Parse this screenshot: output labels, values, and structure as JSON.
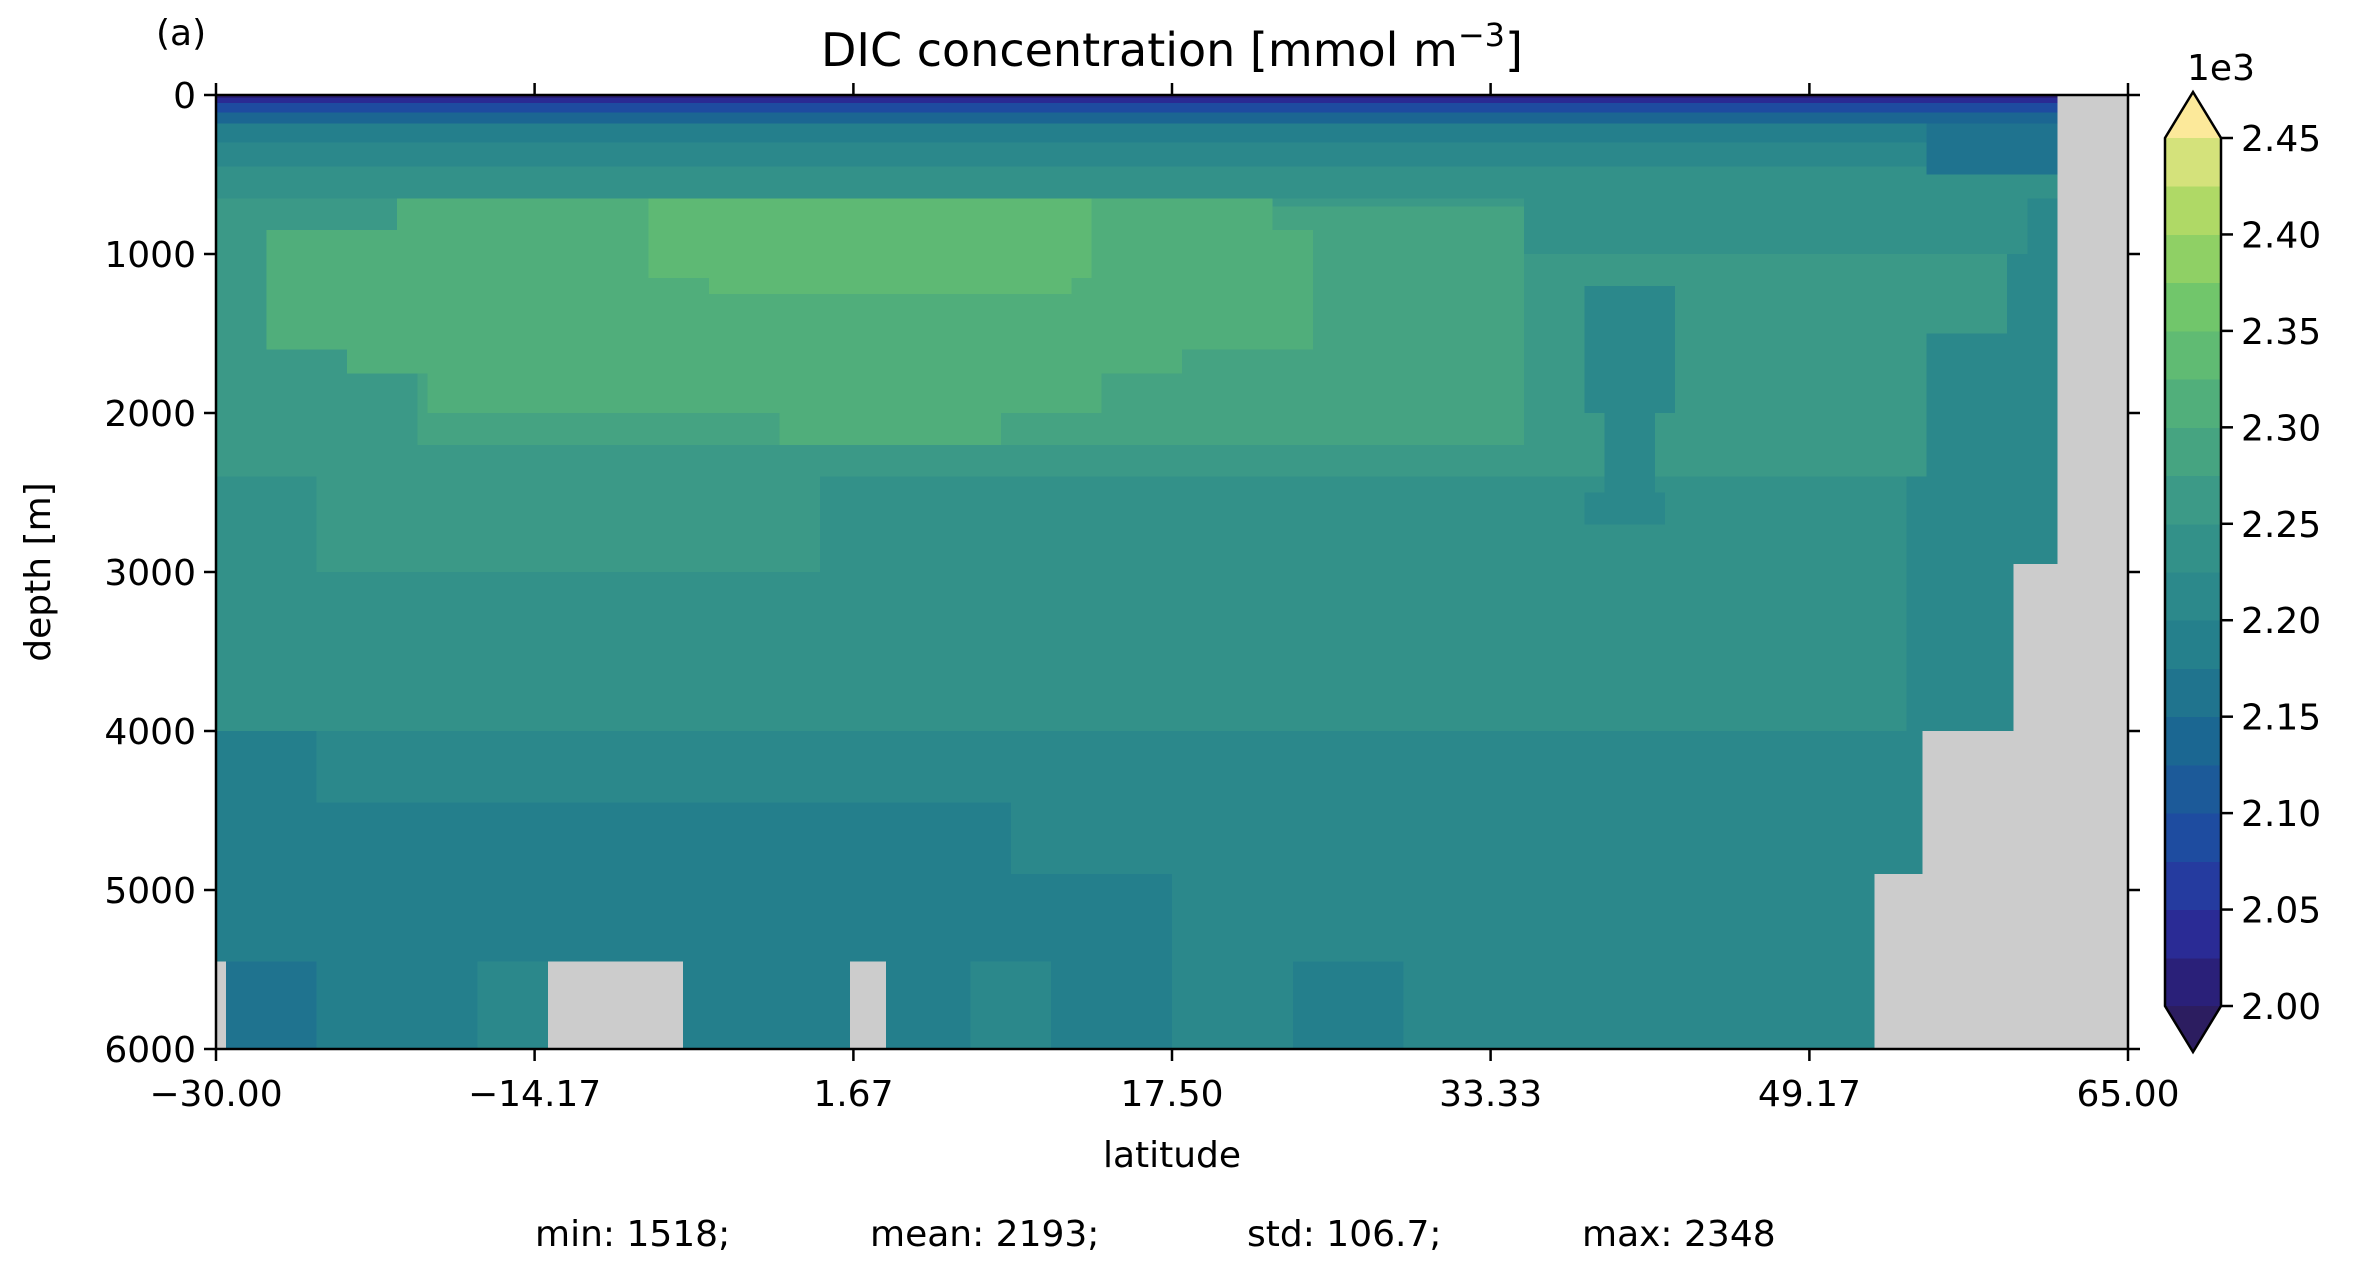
{
  "chart_data": {
    "type": "heatmap",
    "panel_label": "(a)",
    "title": "DIC concentration [mmol m",
    "title_sup": "−3",
    "title_close": "]",
    "xlabel": "latitude",
    "ylabel": "depth [m]",
    "xlim": [
      -30.0,
      65.0
    ],
    "ylim": [
      6000,
      0
    ],
    "y_inverted": true,
    "x_ticks": [
      -30.0,
      -14.17,
      1.67,
      17.5,
      33.33,
      49.17,
      65.0
    ],
    "x_tick_labels": [
      "−30.00",
      "−14.17",
      "1.67",
      "17.50",
      "33.33",
      "49.17",
      "65.00"
    ],
    "y_ticks": [
      0,
      1000,
      2000,
      3000,
      4000,
      5000,
      6000
    ],
    "y_tick_labels": [
      "0",
      "1000",
      "2000",
      "3000",
      "4000",
      "5000",
      "6000"
    ],
    "colorbar": {
      "multiplier_label": "1e3",
      "min": 2.0,
      "max": 2.45,
      "step": 0.025,
      "extend": "both",
      "ticks": [
        2.0,
        2.05,
        2.1,
        2.15,
        2.2,
        2.25,
        2.3,
        2.35,
        2.4,
        2.45
      ],
      "tick_labels": [
        "2.00",
        "2.05",
        "2.10",
        "2.15",
        "2.20",
        "2.25",
        "2.30",
        "2.35",
        "2.40",
        "2.45"
      ],
      "under_color": "#2c1d60",
      "over_color": "#fce99a",
      "colormap_stops": [
        "#2a1a6b",
        "#2a2f9e",
        "#1d4ea0",
        "#1b6692",
        "#237d8c",
        "#2f8d8a",
        "#3f9d86",
        "#52b07a",
        "#6ec56c",
        "#a4d760",
        "#e6e685"
      ]
    },
    "land_color": "#cccccc",
    "units_scale": 1000,
    "regions": [
      {
        "x": [
          -30.0,
          65.0
        ],
        "y": [
          0,
          6000
        ],
        "v": 2.21
      },
      {
        "x": [
          -30.0,
          -25.0
        ],
        "y": [
          3600,
          5450
        ],
        "v": 2.185
      },
      {
        "x": [
          -25.0,
          -21.5
        ],
        "y": [
          4000,
          4450
        ],
        "v": 2.21
      },
      {
        "x": [
          -30.0,
          -9.0
        ],
        "y": [
          4450,
          5450
        ],
        "v": 2.185
      },
      {
        "x": [
          -9.0,
          9.5
        ],
        "y": [
          4450,
          5450
        ],
        "v": 2.185
      },
      {
        "x": [
          9.5,
          17.5
        ],
        "y": [
          4900,
          5450
        ],
        "v": 2.185
      },
      {
        "x": [
          -30.0,
          -25.0
        ],
        "y": [
          5450,
          6000
        ],
        "v": 2.16
      },
      {
        "x": [
          -25.0,
          -17.0
        ],
        "y": [
          5450,
          6000
        ],
        "v": 2.185
      },
      {
        "x": [
          -17.0,
          -13.5
        ],
        "y": [
          5450,
          6000
        ],
        "v": 2.21
      },
      {
        "x": [
          -6.8,
          1.5
        ],
        "y": [
          5450,
          6000
        ],
        "v": 2.185
      },
      {
        "x": [
          3.3,
          7.5
        ],
        "y": [
          5450,
          6000
        ],
        "v": 2.185
      },
      {
        "x": [
          7.5,
          11.5
        ],
        "y": [
          5450,
          6000
        ],
        "v": 2.21
      },
      {
        "x": [
          11.5,
          17.5
        ],
        "y": [
          5450,
          6000
        ],
        "v": 2.185
      },
      {
        "x": [
          23.5,
          29.0
        ],
        "y": [
          5450,
          6000
        ],
        "v": 2.185
      },
      {
        "x": [
          -30.0,
          54.0
        ],
        "y": [
          2400,
          4000
        ],
        "v": 2.235
      },
      {
        "x": [
          -30.0,
          -24.5
        ],
        "y": [
          2400,
          3600
        ],
        "v": 2.235
      },
      {
        "x": [
          -25.0,
          0.0
        ],
        "y": [
          2400,
          3000
        ],
        "v": 2.26
      },
      {
        "x": [
          -30.0,
          55.0
        ],
        "y": [
          1500,
          2400
        ],
        "v": 2.26
      },
      {
        "x": [
          -30.0,
          54.0
        ],
        "y": [
          2200,
          2400
        ],
        "v": 2.26
      },
      {
        "x": [
          -30.0,
          60.0
        ],
        "y": [
          600,
          1500
        ],
        "v": 2.26
      },
      {
        "x": [
          -20.0,
          35.0
        ],
        "y": [
          700,
          2200
        ],
        "v": 2.285
      },
      {
        "x": [
          -13.0,
          25.0
        ],
        "y": [
          1900,
          2200
        ],
        "v": 2.285
      },
      {
        "x": [
          -9.0,
          22.0
        ],
        "y": [
          1700,
          1900
        ],
        "v": 2.285
      },
      {
        "x": [
          -27.5,
          24.5
        ],
        "y": [
          850,
          1600
        ],
        "v": 2.31
      },
      {
        "x": [
          -23.5,
          18.0
        ],
        "y": [
          1550,
          1750
        ],
        "v": 2.31
      },
      {
        "x": [
          -19.5,
          14.0
        ],
        "y": [
          1700,
          2000
        ],
        "v": 2.31
      },
      {
        "x": [
          -2.0,
          9.0
        ],
        "y": [
          1900,
          2200
        ],
        "v": 2.31
      },
      {
        "x": [
          -21.0,
          22.5
        ],
        "y": [
          650,
          900
        ],
        "v": 2.31
      },
      {
        "x": [
          -8.5,
          19.0
        ],
        "y": [
          450,
          700
        ],
        "v": 2.31
      },
      {
        "x": [
          -8.5,
          13.5
        ],
        "y": [
          500,
          1150
        ],
        "v": 2.335
      },
      {
        "x": [
          -5.5,
          12.0
        ],
        "y": [
          450,
          550
        ],
        "v": 2.335
      },
      {
        "x": [
          -5.5,
          12.5
        ],
        "y": [
          1150,
          1250
        ],
        "v": 2.335
      },
      {
        "x": [
          38.0,
          42.5
        ],
        "y": [
          1200,
          2000
        ],
        "v": 2.21
      },
      {
        "x": [
          39.0,
          41.5
        ],
        "y": [
          2000,
          2500
        ],
        "v": 2.21
      },
      {
        "x": [
          38.0,
          42.0
        ],
        "y": [
          2500,
          2700
        ],
        "v": 2.21
      },
      {
        "x": [
          35.0,
          60.0
        ],
        "y": [
          550,
          1000
        ],
        "v": 2.235
      },
      {
        "x": [
          -30.0,
          61.5
        ],
        "y": [
          350,
          650
        ],
        "v": 2.235
      },
      {
        "x": [
          -30.0,
          61.5
        ],
        "y": [
          200,
          450
        ],
        "v": 2.21
      },
      {
        "x": [
          -30.0,
          61.5
        ],
        "y": [
          120,
          300
        ],
        "v": 2.185
      },
      {
        "x": [
          55.0,
          61.5
        ],
        "y": [
          0,
          500
        ],
        "v": 2.16
      },
      {
        "x": [
          -30.0,
          61.5
        ],
        "y": [
          60,
          180
        ],
        "v": 2.135
      },
      {
        "x": [
          -30.0,
          61.5
        ],
        "y": [
          30,
          110
        ],
        "v": 2.085
      },
      {
        "x": [
          -30.0,
          61.5
        ],
        "y": [
          0,
          50
        ],
        "v": 2.035
      },
      {
        "x": [
          -30.0,
          61.5
        ],
        "y": [
          0,
          20
        ],
        "v": 2.01
      },
      {
        "x": [
          59.0,
          61.5
        ],
        "y": [
          1000,
          2000
        ],
        "v": 2.21
      }
    ],
    "land": [
      {
        "x": [
          61.5,
          65.0
        ],
        "y": [
          0,
          6000
        ]
      },
      {
        "x": [
          59.3,
          61.5
        ],
        "y": [
          2950,
          6000
        ]
      },
      {
        "x": [
          54.8,
          59.3
        ],
        "y": [
          4000,
          6000
        ]
      },
      {
        "x": [
          52.4,
          54.8
        ],
        "y": [
          4900,
          6000
        ]
      },
      {
        "x": [
          -13.5,
          -6.8
        ],
        "y": [
          5450,
          6000
        ]
      },
      {
        "x": [
          1.5,
          3.3
        ],
        "y": [
          5450,
          6000
        ]
      },
      {
        "x": [
          -30.0,
          -29.5
        ],
        "y": [
          5450,
          6000
        ]
      }
    ],
    "stats_text": {
      "min": "min: 1518;",
      "mean": "mean: 2193;",
      "std": "std: 106.7;",
      "max": "max: 2348"
    }
  }
}
